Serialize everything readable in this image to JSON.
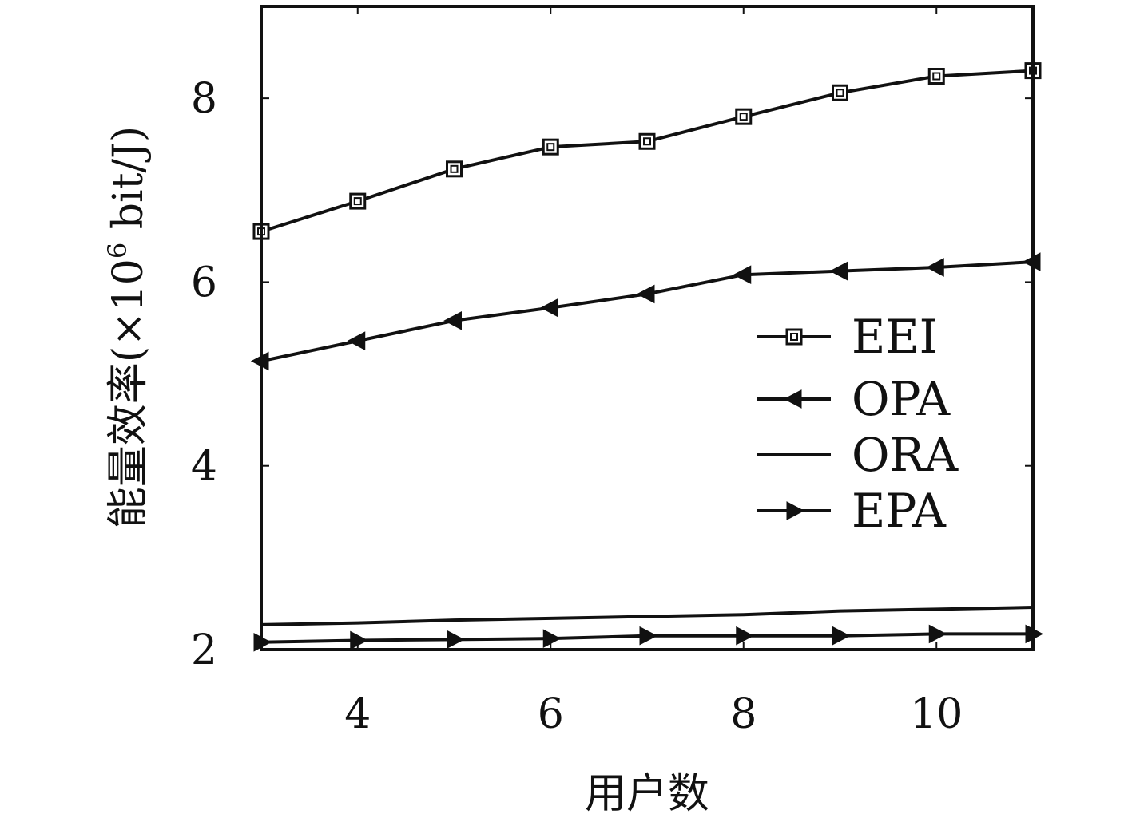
{
  "chart_data": {
    "type": "line",
    "xlabel": "用户数",
    "ylabel_main": "能量效率(×10",
    "ylabel_sup": "6",
    "ylabel_tail": " bit/J)",
    "xlim": [
      3,
      11
    ],
    "ylim": [
      2,
      9
    ],
    "xticks": [
      4,
      6,
      8,
      10
    ],
    "yticks": [
      2,
      4,
      6,
      8
    ],
    "xticklabels": [
      "4",
      "6",
      "8",
      "10"
    ],
    "yticklabels": [
      "2",
      "4",
      "6",
      "8"
    ],
    "grid": false,
    "legend_position": "center-right",
    "line_color": "#111111",
    "x": [
      3,
      4,
      5,
      6,
      7,
      8,
      9,
      10,
      11
    ],
    "series": [
      {
        "name": "EEI",
        "marker": "square",
        "values": [
          6.55,
          6.88,
          7.23,
          7.47,
          7.53,
          7.8,
          8.06,
          8.24,
          8.3
        ]
      },
      {
        "name": "OPA",
        "marker": "triangle-left",
        "values": [
          5.14,
          5.36,
          5.58,
          5.72,
          5.87,
          6.08,
          6.12,
          6.16,
          6.22
        ]
      },
      {
        "name": "ORA",
        "marker": "none",
        "values": [
          2.27,
          2.29,
          2.32,
          2.34,
          2.36,
          2.38,
          2.42,
          2.44,
          2.46
        ]
      },
      {
        "name": "EPA",
        "marker": "triangle-right",
        "values": [
          2.08,
          2.1,
          2.11,
          2.12,
          2.15,
          2.15,
          2.15,
          2.17,
          2.17
        ]
      }
    ]
  }
}
